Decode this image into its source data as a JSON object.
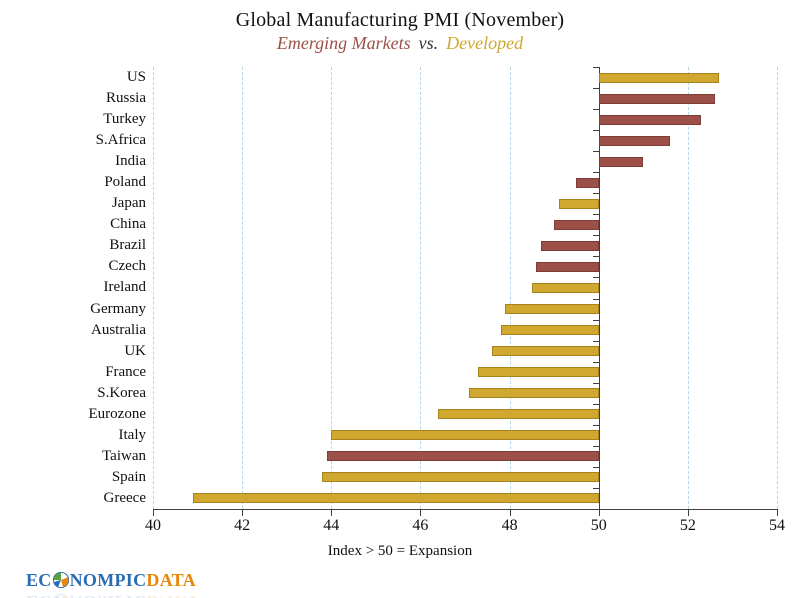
{
  "title": "Global Manufacturing PMI (November)",
  "subtitle": {
    "emerging": "Emerging Markets",
    "vs": "vs.",
    "developed": "Developed"
  },
  "chart_data": {
    "type": "bar",
    "orientation": "horizontal",
    "title": "Global Manufacturing PMI (November)",
    "subtitle": "Emerging Markets vs. Developed",
    "xlabel": "Index > 50 = Expansion",
    "xlim": [
      40,
      54
    ],
    "xticks": [
      40,
      42,
      44,
      46,
      48,
      50,
      52,
      54
    ],
    "baseline": 50,
    "grid": "vertical-dashed-lightblue",
    "legend_position": "subtitle-color-coded",
    "categories": [
      "US",
      "Russia",
      "Turkey",
      "S.Africa",
      "India",
      "Poland",
      "Japan",
      "China",
      "Brazil",
      "Czech",
      "Ireland",
      "Germany",
      "Australia",
      "UK",
      "France",
      "S.Korea",
      "Eurozone",
      "Italy",
      "Taiwan",
      "Spain",
      "Greece"
    ],
    "series": [
      {
        "name": "PMI",
        "values": [
          52.7,
          52.6,
          52.3,
          51.6,
          51.0,
          49.5,
          49.1,
          49.0,
          48.7,
          48.6,
          48.5,
          47.9,
          47.8,
          47.6,
          47.3,
          47.1,
          46.4,
          44.0,
          43.9,
          43.8,
          40.9
        ]
      }
    ],
    "groups": [
      "developed",
      "emerging",
      "emerging",
      "emerging",
      "emerging",
      "emerging",
      "developed",
      "emerging",
      "emerging",
      "emerging",
      "developed",
      "developed",
      "developed",
      "developed",
      "developed",
      "developed",
      "developed",
      "developed",
      "emerging",
      "developed",
      "developed"
    ]
  },
  "colors": {
    "emerging": "#9C5047",
    "emerging_border": "#7B3D36",
    "developed": "#D0A72F",
    "developed_border": "#A5841E",
    "gridline": "#B5D5E8",
    "axis": "#3F3F3F",
    "logo_blue": "#2A6CB5",
    "logo_orange": "#E8860B"
  },
  "logo": {
    "prefix": "EC",
    "middle": "NOMPIC",
    "suffix": "DATA"
  }
}
